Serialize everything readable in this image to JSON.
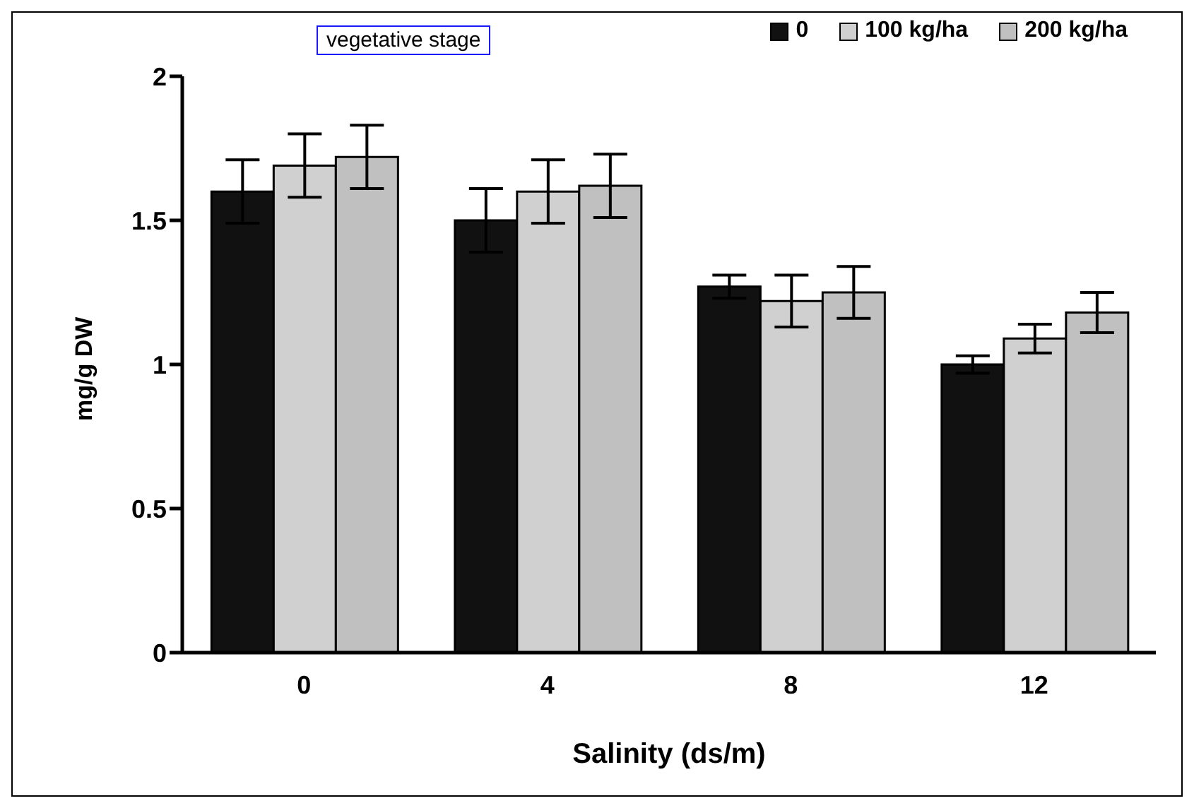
{
  "chart_data": {
    "type": "bar",
    "title": "vegetative stage",
    "xlabel": "Salinity (ds/m)",
    "ylabel": "mg/g DW",
    "categories": [
      "0",
      "4",
      "8",
      "12"
    ],
    "series": [
      {
        "name": "0",
        "color": "#111111",
        "values": [
          1.6,
          1.5,
          1.27,
          1.0
        ],
        "errors": [
          0.11,
          0.11,
          0.04,
          0.03
        ]
      },
      {
        "name": "100 kg/ha",
        "color": "#d0d0d0",
        "values": [
          1.69,
          1.6,
          1.22,
          1.09
        ],
        "errors": [
          0.11,
          0.11,
          0.09,
          0.05
        ]
      },
      {
        "name": "200 kg/ha",
        "color": "#c0c0c0",
        "values": [
          1.72,
          1.62,
          1.25,
          1.18
        ],
        "errors": [
          0.11,
          0.11,
          0.09,
          0.07
        ]
      }
    ],
    "ylim": [
      0,
      2
    ],
    "yticks": [
      0,
      0.5,
      1,
      1.5,
      2
    ],
    "grid": false,
    "legend": "top right"
  }
}
